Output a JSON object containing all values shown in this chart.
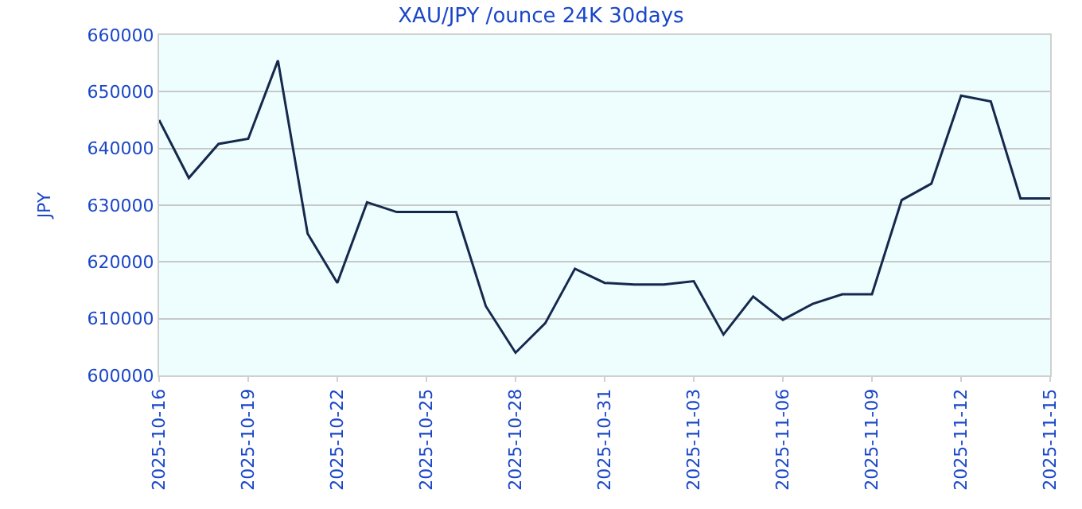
{
  "chart_data": {
    "type": "line",
    "title": "XAU/JPY /ounce 24K 30days",
    "ylabel": "JPY",
    "x": [
      "2025-10-16",
      "2025-10-17",
      "2025-10-18",
      "2025-10-19",
      "2025-10-20",
      "2025-10-21",
      "2025-10-22",
      "2025-10-23",
      "2025-10-24",
      "2025-10-25",
      "2025-10-26",
      "2025-10-27",
      "2025-10-28",
      "2025-10-29",
      "2025-10-30",
      "2025-10-31",
      "2025-11-01",
      "2025-11-02",
      "2025-11-03",
      "2025-11-04",
      "2025-11-05",
      "2025-11-06",
      "2025-11-07",
      "2025-11-08",
      "2025-11-09",
      "2025-11-10",
      "2025-11-11",
      "2025-11-12",
      "2025-11-13",
      "2025-11-14",
      "2025-11-15"
    ],
    "series": [
      {
        "color": "#16294d",
        "values": [
          645000,
          634800,
          640800,
          641700,
          655500,
          625000,
          616300,
          630500,
          628800,
          628800,
          628800,
          612200,
          604000,
          609200,
          618800,
          616300,
          616000,
          616000,
          616600,
          607200,
          613900,
          609800,
          612600,
          614300,
          614300,
          630900,
          633800,
          649300,
          648300,
          631200,
          631200
        ]
      }
    ],
    "xlim": [
      "2025-10-16",
      "2025-11-15"
    ],
    "xticks": [
      "2025-10-16",
      "2025-10-19",
      "2025-10-22",
      "2025-10-25",
      "2025-10-28",
      "2025-10-31",
      "2025-11-03",
      "2025-11-06",
      "2025-11-09",
      "2025-11-12",
      "2025-11-15"
    ],
    "ylim": [
      600000,
      660000
    ],
    "yticks": [
      600000,
      610000,
      620000,
      630000,
      640000,
      650000,
      660000
    ],
    "grid": "y",
    "marker": "none",
    "line_style": "solid"
  }
}
